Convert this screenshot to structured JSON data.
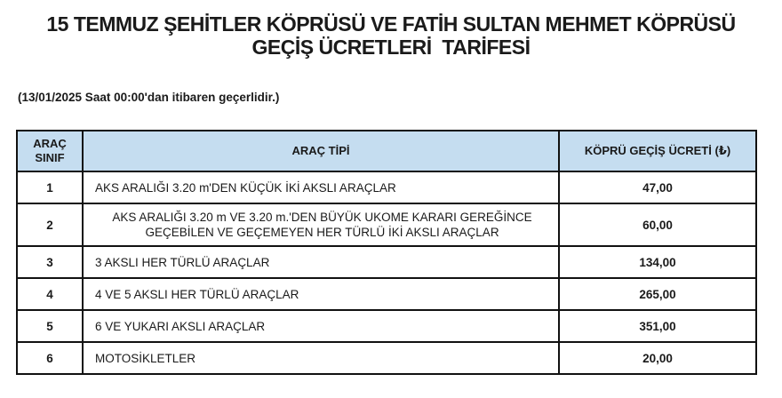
{
  "page": {
    "title": "15 TEMMUZ ŞEHİTLER KÖPRÜSÜ VE FATİH SULTAN MEHMET KÖPRÜSÜ\nGEÇİŞ ÜCRETLERİ  TARİFESİ",
    "effective_note": "(13/01/2025 Saat 00:00'dan itibaren geçerlidir.)"
  },
  "table": {
    "headers": {
      "class": "ARAÇ SINIF",
      "type": "ARAÇ TİPİ",
      "fee": "KÖPRÜ GEÇİŞ ÜCRETİ (₺)"
    },
    "rows": [
      {
        "class": "1",
        "type": "AKS ARALIĞI 3.20 m'DEN KÜÇÜK İKİ AKSLI ARAÇLAR",
        "fee": "47,00"
      },
      {
        "class": "2",
        "type": "AKS ARALIĞI 3.20 m VE 3.20 m.'DEN BÜYÜK UKOME KARARI GEREĞİNCE GEÇEBİLEN VE GEÇEMEYEN HER TÜRLÜ İKİ AKSLI ARAÇLAR",
        "fee": "60,00"
      },
      {
        "class": "3",
        "type": "3 AKSLI HER TÜRLÜ ARAÇLAR",
        "fee": "134,00"
      },
      {
        "class": "4",
        "type": "4 VE 5 AKSLI HER TÜRLÜ ARAÇLAR",
        "fee": "265,00"
      },
      {
        "class": "5",
        "type": "6 VE YUKARI AKSLI ARAÇLAR",
        "fee": "351,00"
      },
      {
        "class": "6",
        "type": "MOTOSİKLETLER",
        "fee": "20,00"
      }
    ],
    "colors": {
      "header_bg": "#c5ddf0",
      "border": "#111111"
    }
  }
}
